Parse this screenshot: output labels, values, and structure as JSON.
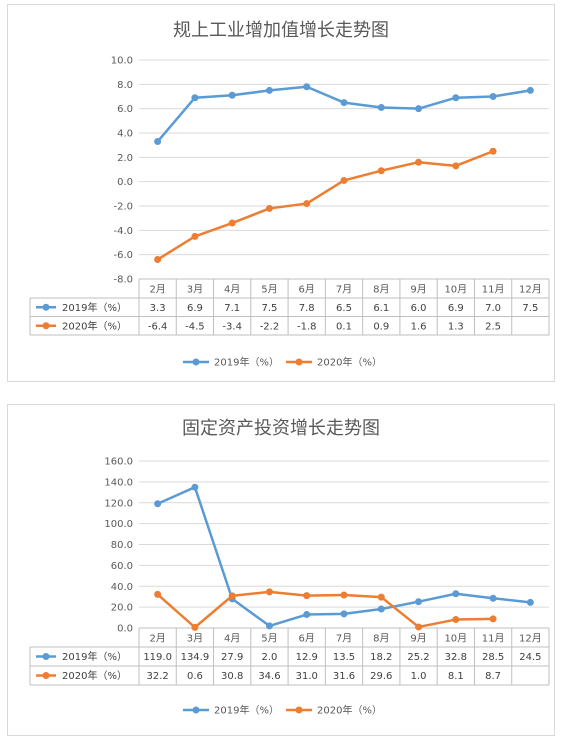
{
  "chart_data": [
    {
      "type": "line",
      "title": "规上工业增加值增长走势图",
      "categories": [
        "2月",
        "3月",
        "4月",
        "5月",
        "6月",
        "7月",
        "8月",
        "9月",
        "10月",
        "11月",
        "12月"
      ],
      "yticks": [
        "10.0",
        "8.0",
        "6.0",
        "4.0",
        "2.0",
        "0.0",
        "-2.0",
        "-4.0",
        "-6.0",
        "-8.0"
      ],
      "ylim": [
        -8,
        10
      ],
      "series": [
        {
          "name": "2019年（%）",
          "color": "#5b9bd5",
          "values": [
            3.3,
            6.9,
            7.1,
            7.5,
            7.8,
            6.5,
            6.1,
            6.0,
            6.9,
            7.0,
            7.5
          ],
          "labels": [
            "3.3",
            "6.9",
            "7.1",
            "7.5",
            "7.8",
            "6.5",
            "6.1",
            "6.0",
            "6.9",
            "7.0",
            "7.5"
          ]
        },
        {
          "name": "2020年（%）",
          "color": "#ed7d31",
          "values": [
            -6.4,
            -4.5,
            -3.4,
            -2.2,
            -1.8,
            0.1,
            0.9,
            1.6,
            1.3,
            2.5,
            null
          ],
          "labels": [
            "-6.4",
            "-4.5",
            "-3.4",
            "-2.2",
            "-1.8",
            "0.1",
            "0.9",
            "1.6",
            "1.3",
            "2.5",
            ""
          ]
        }
      ],
      "grid": true,
      "legend": "bottom"
    },
    {
      "type": "line",
      "title": "固定资产投资增长走势图",
      "categories": [
        "2月",
        "3月",
        "4月",
        "5月",
        "6月",
        "7月",
        "8月",
        "9月",
        "10月",
        "11月",
        "12月"
      ],
      "yticks": [
        "160.0",
        "140.0",
        "120.0",
        "100.0",
        "80.0",
        "60.0",
        "40.0",
        "20.0",
        "0.0"
      ],
      "ylim": [
        0,
        160
      ],
      "series": [
        {
          "name": "2019年（%）",
          "color": "#5b9bd5",
          "values": [
            119.0,
            134.9,
            27.9,
            2.0,
            12.9,
            13.5,
            18.2,
            25.2,
            32.8,
            28.5,
            24.5
          ],
          "labels": [
            "119.0",
            "134.9",
            "27.9",
            "2.0",
            "12.9",
            "13.5",
            "18.2",
            "25.2",
            "32.8",
            "28.5",
            "24.5"
          ]
        },
        {
          "name": "2020年（%）",
          "color": "#ed7d31",
          "values": [
            32.2,
            0.6,
            30.8,
            34.6,
            31.0,
            31.6,
            29.6,
            1.0,
            8.1,
            8.7,
            null
          ],
          "labels": [
            "32.2",
            "0.6",
            "30.8",
            "34.6",
            "31.0",
            "31.6",
            "29.6",
            "1.0",
            "8.1",
            "8.7",
            ""
          ]
        }
      ],
      "grid": true,
      "legend": "bottom"
    }
  ]
}
